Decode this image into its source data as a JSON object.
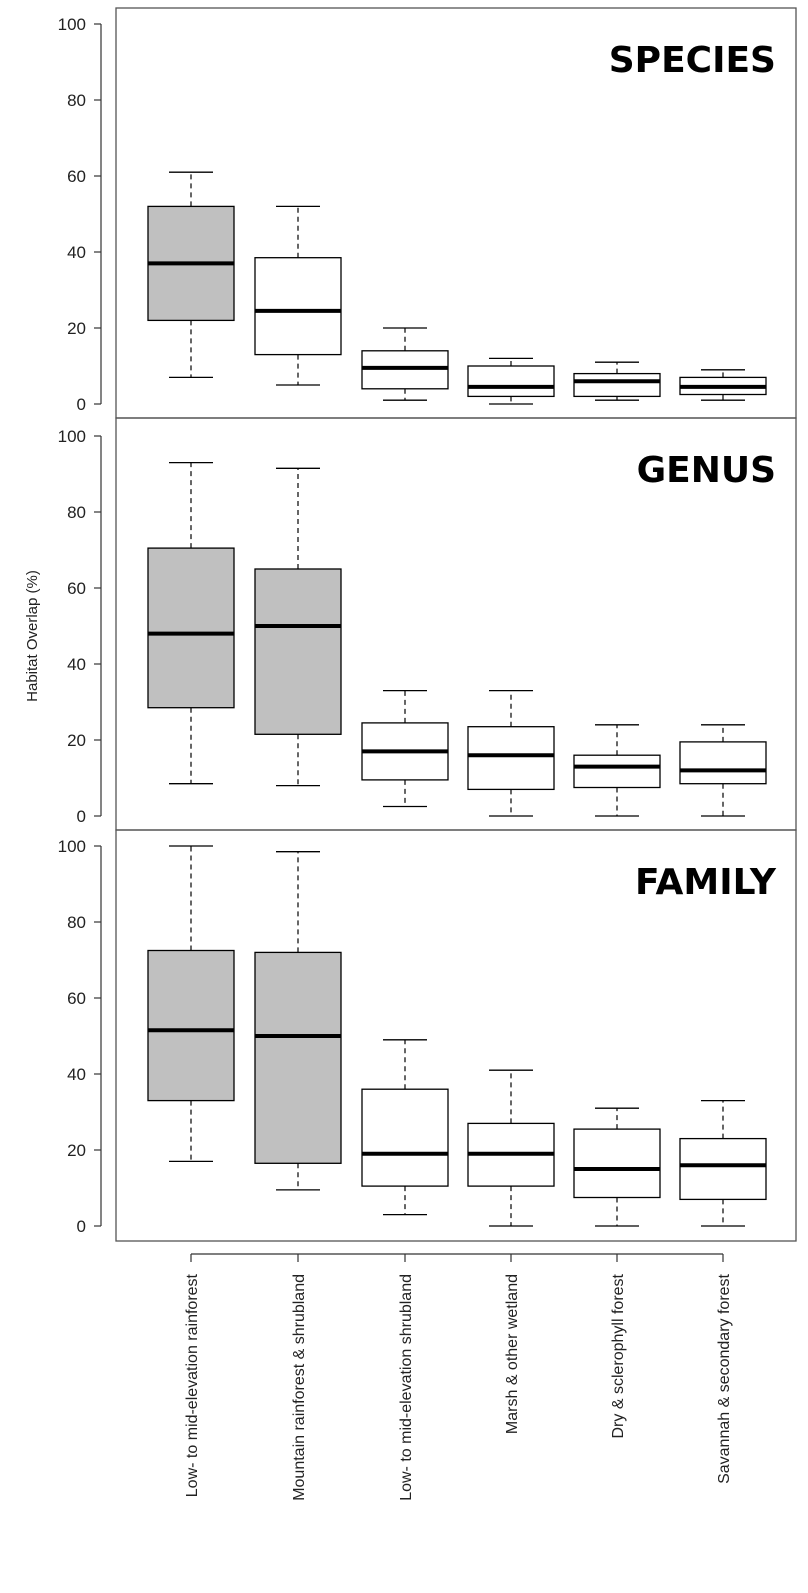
{
  "chart_data": {
    "type": "box",
    "ylabel": "Habitat Overlap (%)",
    "categories": [
      "Low- to mid-elevation rainforest",
      "Mountain rainforest & shrubland",
      "Low- to mid-elevation shrubland",
      "Marsh & other wetland",
      "Dry & sclerophyll forest",
      "Savannah & secondary forest"
    ],
    "ylim": [
      0,
      100
    ],
    "yticks": [
      0,
      20,
      40,
      60,
      80,
      100
    ],
    "highlight_color": "#c0c0c0",
    "default_color": "#ffffff",
    "panels": [
      {
        "title": "SPECIES",
        "boxes": [
          {
            "min": 7,
            "q1": 22,
            "median": 37,
            "q3": 52,
            "max": 61,
            "fill": "highlight"
          },
          {
            "min": 5,
            "q1": 13,
            "median": 24.5,
            "q3": 38.5,
            "max": 52,
            "fill": "default"
          },
          {
            "min": 1,
            "q1": 4,
            "median": 9.5,
            "q3": 14,
            "max": 20,
            "fill": "default"
          },
          {
            "min": 0,
            "q1": 2,
            "median": 4.5,
            "q3": 10,
            "max": 12,
            "fill": "default"
          },
          {
            "min": 1,
            "q1": 2,
            "median": 6,
            "q3": 8,
            "max": 11,
            "fill": "default"
          },
          {
            "min": 1,
            "q1": 2.5,
            "median": 4.5,
            "q3": 7,
            "max": 9,
            "fill": "default"
          }
        ]
      },
      {
        "title": "GENUS",
        "boxes": [
          {
            "min": 8.5,
            "q1": 28.5,
            "median": 48,
            "q3": 70.5,
            "max": 93,
            "fill": "highlight"
          },
          {
            "min": 8,
            "q1": 21.5,
            "median": 50,
            "q3": 65,
            "max": 91.5,
            "fill": "highlight"
          },
          {
            "min": 2.5,
            "q1": 9.5,
            "median": 17,
            "q3": 24.5,
            "max": 33,
            "fill": "default"
          },
          {
            "min": 0,
            "q1": 7,
            "median": 16,
            "q3": 23.5,
            "max": 33,
            "fill": "default"
          },
          {
            "min": 0,
            "q1": 7.5,
            "median": 13,
            "q3": 16,
            "max": 24,
            "fill": "default"
          },
          {
            "min": 0,
            "q1": 8.5,
            "median": 12,
            "q3": 19.5,
            "max": 24,
            "fill": "default"
          }
        ]
      },
      {
        "title": "FAMILY",
        "boxes": [
          {
            "min": 17,
            "q1": 33,
            "median": 51.5,
            "q3": 72.5,
            "max": 100,
            "fill": "highlight"
          },
          {
            "min": 9.5,
            "q1": 16.5,
            "median": 50,
            "q3": 72,
            "max": 98.5,
            "fill": "highlight"
          },
          {
            "min": 3,
            "q1": 10.5,
            "median": 19,
            "q3": 36,
            "max": 49,
            "fill": "default"
          },
          {
            "min": 0,
            "q1": 10.5,
            "median": 19,
            "q3": 27,
            "max": 41,
            "fill": "default"
          },
          {
            "min": 0,
            "q1": 7.5,
            "median": 15,
            "q3": 25.5,
            "max": 31,
            "fill": "default"
          },
          {
            "min": 0,
            "q1": 7,
            "median": 16,
            "q3": 23,
            "max": 33,
            "fill": "default"
          }
        ]
      }
    ]
  }
}
